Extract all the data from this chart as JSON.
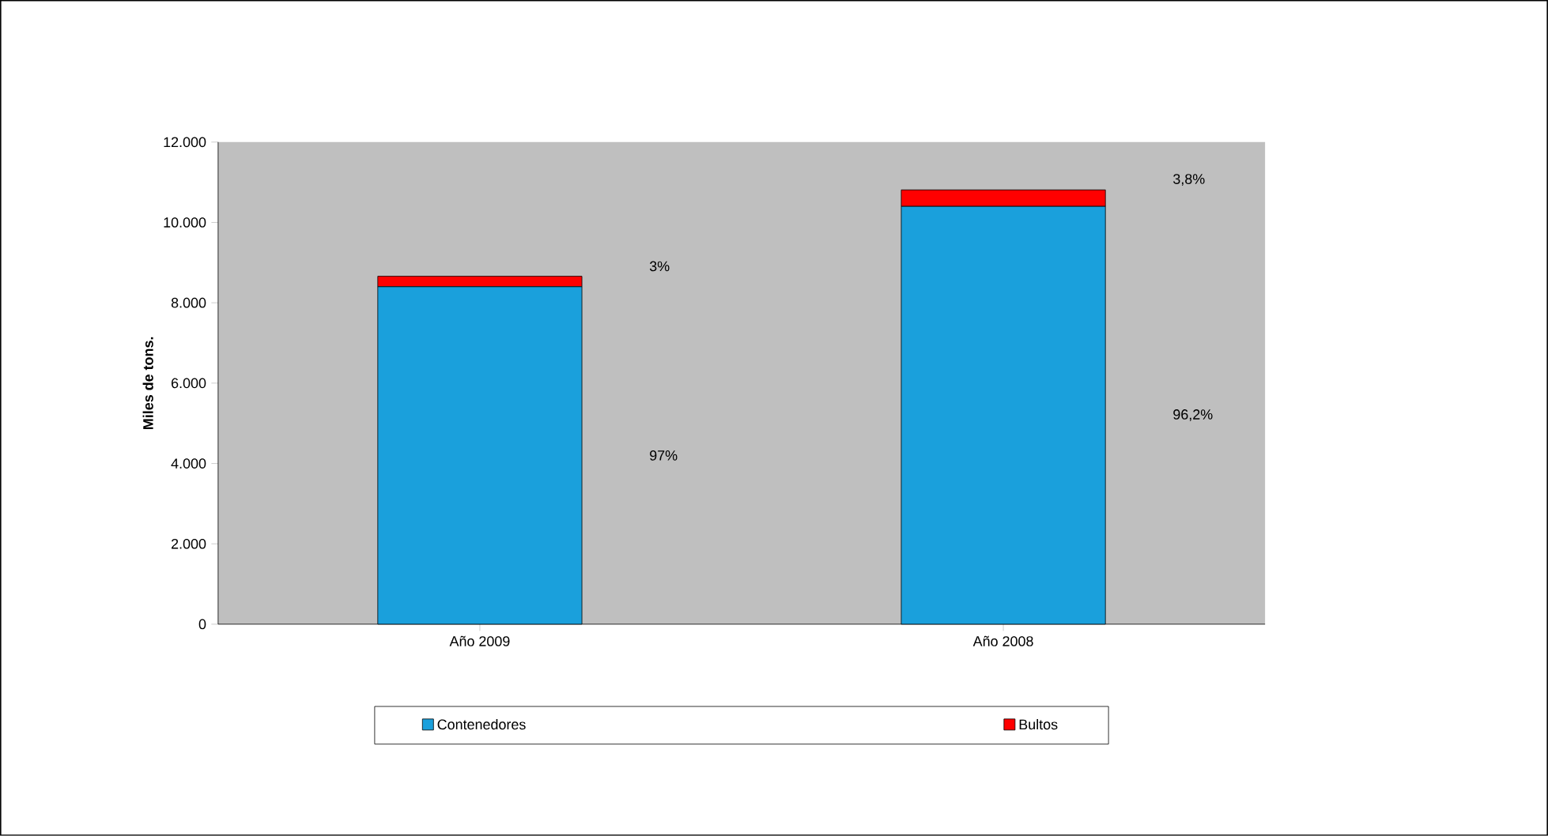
{
  "chart_data": {
    "type": "bar",
    "stacked": true,
    "ylabel": "Miles de tons.",
    "categories": [
      "Año 2009",
      "Año 2008"
    ],
    "series": [
      {
        "name": "Contenedores",
        "color": "#1aa0dc",
        "values": [
          8400,
          10400
        ]
      },
      {
        "name": "Bultos",
        "color": "#ff0000",
        "values": [
          260,
          410
        ]
      }
    ],
    "annotations": [
      "97%",
      "96,2%",
      "3%",
      "3,8%"
    ],
    "ylim": [
      0,
      12000
    ],
    "yticks": [
      {
        "value": 0,
        "label": "0"
      },
      {
        "value": 2000,
        "label": "2.000"
      },
      {
        "value": 4000,
        "label": "4.000"
      },
      {
        "value": 6000,
        "label": "6.000"
      },
      {
        "value": 8000,
        "label": "8.000"
      },
      {
        "value": 10000,
        "label": "10.000"
      },
      {
        "value": 12000,
        "label": "12.000"
      }
    ],
    "grid": false,
    "legend": "bottom"
  }
}
